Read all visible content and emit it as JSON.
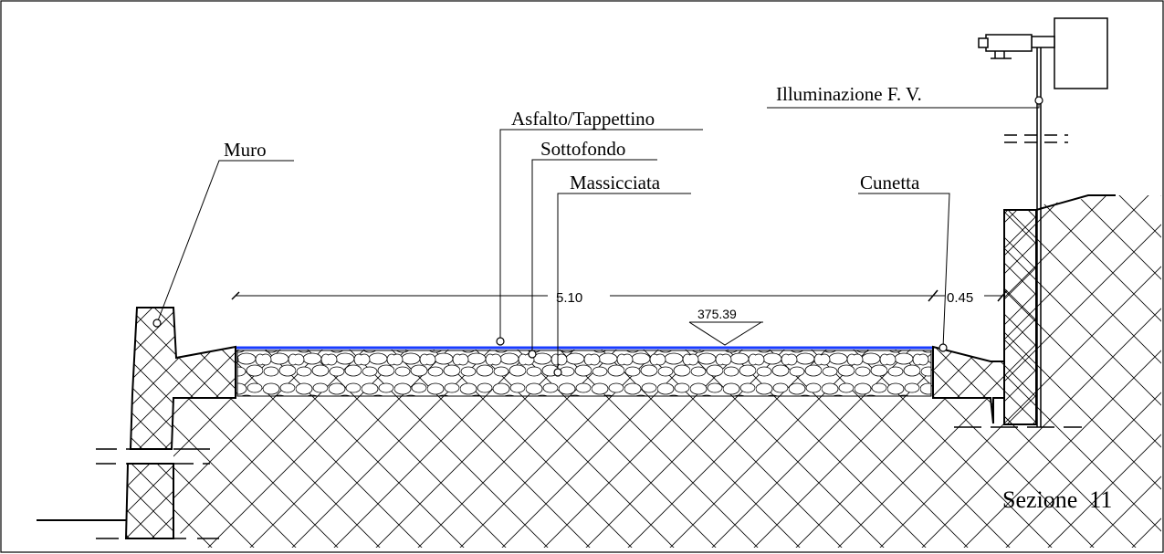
{
  "labels": {
    "muro": "Muro",
    "asfalto": "Asfalto/Tappettino",
    "sottofondo": "Sottofondo",
    "massicciata": "Massicciata",
    "cunetta": "Cunetta",
    "illuminazione": "Illuminazione F. V.",
    "sezione": "Sezione  11"
  },
  "dimensions": {
    "road_width": "5.10",
    "gutter_width": "0.45",
    "elevation": "375.39"
  },
  "colors": {
    "asphalt": "#1a3cff",
    "line": "#000000"
  }
}
